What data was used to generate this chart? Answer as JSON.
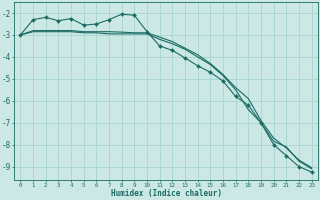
{
  "xlabel": "Humidex (Indice chaleur)",
  "bg_color": "#cce8e4",
  "grid_color": "#a8d4d0",
  "line_color": "#1a6b64",
  "xlim": [
    -0.5,
    23.5
  ],
  "ylim": [
    -9.6,
    -1.5
  ],
  "yticks": [
    -9,
    -8,
    -7,
    -6,
    -5,
    -4,
    -3,
    -2
  ],
  "xticks": [
    0,
    1,
    2,
    3,
    4,
    5,
    6,
    7,
    8,
    9,
    10,
    11,
    12,
    13,
    14,
    15,
    16,
    17,
    18,
    19,
    20,
    21,
    22,
    23
  ],
  "series1_x": [
    0,
    1,
    2,
    3,
    4,
    5,
    6,
    7,
    8,
    9,
    10,
    11,
    12,
    13,
    14,
    15,
    16,
    17,
    18,
    19,
    20,
    21,
    22,
    23
  ],
  "series1_y": [
    -3.0,
    -2.3,
    -2.2,
    -2.35,
    -2.25,
    -2.55,
    -2.5,
    -2.3,
    -2.05,
    -2.1,
    -2.85,
    -3.5,
    -3.7,
    -4.05,
    -4.4,
    -4.7,
    -5.1,
    -5.8,
    -6.2,
    -7.0,
    -8.0,
    -8.5,
    -9.0,
    -9.25
  ],
  "series2_x": [
    0,
    1,
    2,
    3,
    4,
    5,
    6,
    7,
    8,
    9,
    10,
    11,
    12,
    13,
    14,
    15,
    16,
    17,
    18,
    19,
    20,
    21,
    22,
    23
  ],
  "series2_y": [
    -3.0,
    -2.8,
    -2.8,
    -2.8,
    -2.8,
    -2.85,
    -2.85,
    -2.85,
    -2.87,
    -2.9,
    -2.9,
    -3.1,
    -3.3,
    -3.6,
    -3.9,
    -4.3,
    -4.8,
    -5.4,
    -5.9,
    -6.9,
    -7.7,
    -8.15,
    -8.7,
    -9.05
  ],
  "series3_x": [
    0,
    1,
    2,
    3,
    4,
    5,
    6,
    7,
    8,
    9,
    10,
    11,
    12,
    13,
    14,
    15,
    16,
    17,
    18,
    19,
    20,
    21,
    22,
    23
  ],
  "series3_y": [
    -3.0,
    -2.85,
    -2.85,
    -2.85,
    -2.85,
    -2.9,
    -2.9,
    -2.95,
    -2.95,
    -2.95,
    -2.95,
    -3.2,
    -3.4,
    -3.65,
    -4.0,
    -4.35,
    -4.85,
    -5.5,
    -6.4,
    -7.0,
    -7.85,
    -8.1,
    -8.75,
    -9.1
  ]
}
